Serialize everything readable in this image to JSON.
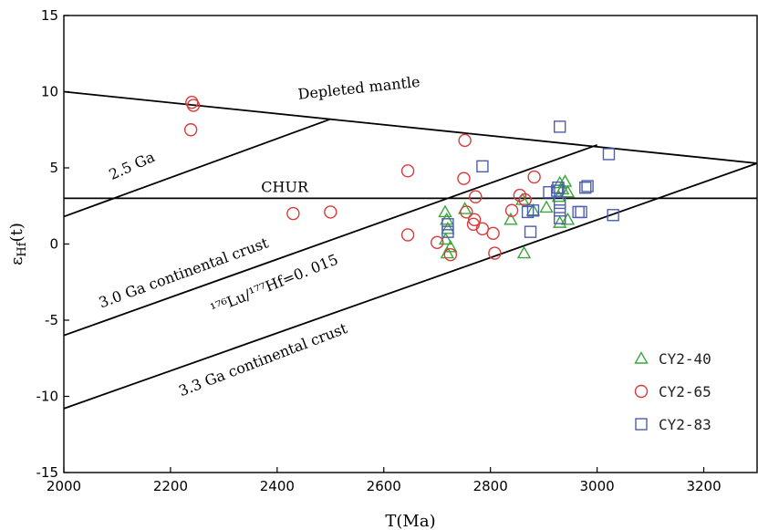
{
  "chart_data": {
    "type": "scatter",
    "xlabel": "T(Ma)",
    "ylabel_main": "ε",
    "ylabel_sub": "Hf",
    "ylabel_suffix": "(t)",
    "xlim": [
      2000,
      3300
    ],
    "ylim": [
      -15,
      15
    ],
    "xticks": [
      2000,
      2200,
      2400,
      2600,
      2800,
      3000,
      3200
    ],
    "yticks": [
      -15,
      -10,
      -5,
      0,
      5,
      10,
      15
    ],
    "grid": false,
    "legend_position": "bottom-right",
    "reference_lines": [
      {
        "name": "Depleted mantle",
        "x": [
          2000,
          3300
        ],
        "y": [
          10,
          5.3
        ]
      },
      {
        "name": "CHUR",
        "x": [
          2000,
          3300
        ],
        "y": [
          3.0,
          3.0
        ]
      },
      {
        "name": "2.5 Ga",
        "x": [
          2000,
          2500
        ],
        "y": [
          1.8,
          8.2
        ]
      },
      {
        "name": "3.0 Ga continental crust",
        "x": [
          2000,
          3000
        ],
        "y": [
          -6.0,
          6.5
        ]
      },
      {
        "name": "3.3 Ga continental crust",
        "x": [
          2000,
          3300
        ],
        "y": [
          -10.8,
          5.3
        ]
      }
    ],
    "annotations": [
      {
        "text": "Depleted mantle",
        "x": 2440,
        "y": 9.5,
        "angle": -6
      },
      {
        "text": "2.5 Ga",
        "x": 2090,
        "y": 4.2,
        "angle": -24
      },
      {
        "text": "CHUR",
        "x": 2370,
        "y": 3.4,
        "angle": 0
      },
      {
        "text": "3.0 Ga continental  crust",
        "x": 2070,
        "y": -4.2,
        "angle": -20
      },
      {
        "text": "¹⁷⁶Lu/¹⁷⁷Hf=0. 015",
        "x": 2280,
        "y": -4.6,
        "angle": -22
      },
      {
        "text": "3.3 Ga continental  crust",
        "x": 2220,
        "y": -10.0,
        "angle": -21
      }
    ],
    "series": [
      {
        "name": "CY2-40",
        "marker": "triangle",
        "color": "#3aa63a",
        "points": [
          [
            2715,
            2.1
          ],
          [
            2718,
            1.6
          ],
          [
            2720,
            1.0
          ],
          [
            2716,
            0.3
          ],
          [
            2719,
            -0.6
          ],
          [
            2725,
            -0.2
          ],
          [
            2752,
            2.3
          ],
          [
            2838,
            1.6
          ],
          [
            2860,
            2.9
          ],
          [
            2863,
            -0.6
          ],
          [
            2880,
            2.2
          ],
          [
            2905,
            2.4
          ],
          [
            2928,
            3.1
          ],
          [
            2930,
            4.0
          ],
          [
            2935,
            3.6
          ],
          [
            2940,
            4.1
          ],
          [
            2945,
            3.4
          ],
          [
            2930,
            1.4
          ],
          [
            2945,
            1.6
          ]
        ]
      },
      {
        "name": "CY2-65",
        "marker": "circle",
        "color": "#d93a3a",
        "points": [
          [
            2240,
            9.3
          ],
          [
            2243,
            9.1
          ],
          [
            2238,
            7.5
          ],
          [
            2430,
            2.0
          ],
          [
            2500,
            2.1
          ],
          [
            2645,
            4.8
          ],
          [
            2645,
            0.6
          ],
          [
            2700,
            0.1
          ],
          [
            2725,
            -0.7
          ],
          [
            2750,
            4.3
          ],
          [
            2752,
            6.8
          ],
          [
            2755,
            2.1
          ],
          [
            2768,
            1.3
          ],
          [
            2770,
            1.6
          ],
          [
            2772,
            3.1
          ],
          [
            2785,
            1.0
          ],
          [
            2805,
            0.7
          ],
          [
            2808,
            -0.6
          ],
          [
            2840,
            2.2
          ],
          [
            2855,
            3.2
          ],
          [
            2865,
            2.9
          ],
          [
            2882,
            4.4
          ]
        ]
      },
      {
        "name": "CY2-83",
        "marker": "square",
        "color": "#4d5db0",
        "points": [
          [
            2720,
            1.3
          ],
          [
            2720,
            0.8
          ],
          [
            2785,
            5.1
          ],
          [
            2870,
            2.1
          ],
          [
            2875,
            0.8
          ],
          [
            2880,
            2.2
          ],
          [
            2910,
            3.4
          ],
          [
            2925,
            3.5
          ],
          [
            2927,
            3.7
          ],
          [
            2930,
            2.7
          ],
          [
            2930,
            2.2
          ],
          [
            2930,
            1.7
          ],
          [
            2930,
            7.7
          ],
          [
            2965,
            2.1
          ],
          [
            2970,
            2.1
          ],
          [
            2978,
            3.7
          ],
          [
            2982,
            3.8
          ],
          [
            3022,
            5.9
          ],
          [
            3030,
            1.9
          ]
        ]
      }
    ]
  }
}
